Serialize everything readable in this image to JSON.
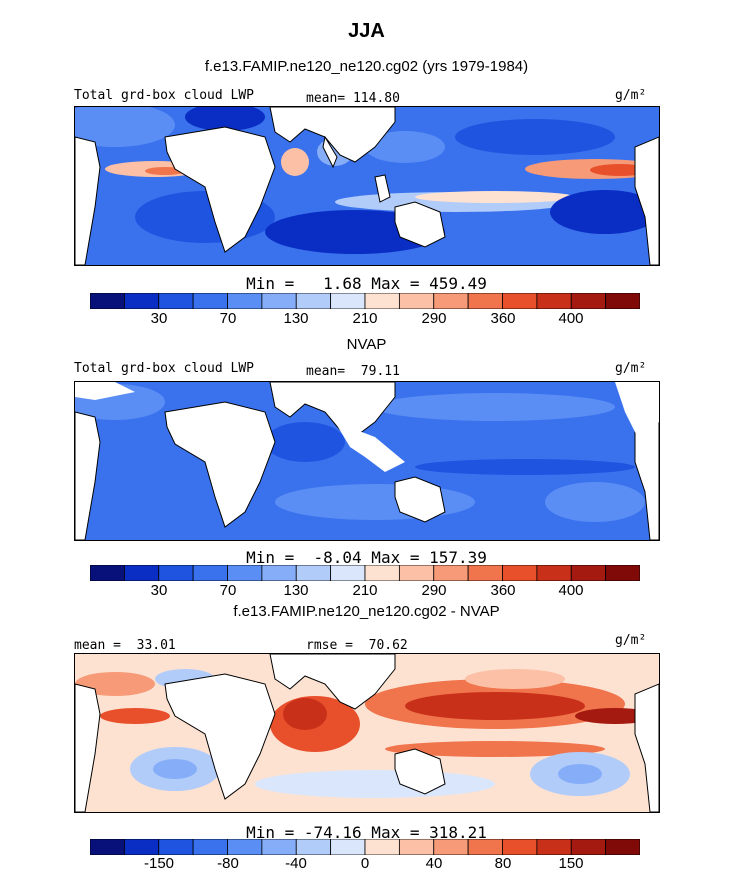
{
  "title": "JJA",
  "panels": [
    {
      "id": "model",
      "subtitle": "f.e13.FAMIP.ne120_ne120.cg02 (yrs 1979-1984)",
      "label_left": "Total grd-box cloud LWP",
      "label_mid": "mean= 114.80",
      "units": "g/m²",
      "minmax": "Min =   1.68 Max = 459.49",
      "ticks": [
        "30",
        "70",
        "130",
        "210",
        "290",
        "360",
        "400"
      ]
    },
    {
      "id": "obs",
      "subtitle": "NVAP",
      "label_left": "Total grd-box cloud LWP",
      "label_mid": "mean=  79.11",
      "units": "g/m²",
      "minmax": "Min =  -8.04 Max = 157.39",
      "ticks": [
        "30",
        "70",
        "130",
        "210",
        "290",
        "360",
        "400"
      ]
    },
    {
      "id": "diff",
      "subtitle": "f.e13.FAMIP.ne120_ne120.cg02 - NVAP",
      "label_left": "mean =  33.01",
      "label_mid": "rmse =  70.62",
      "units": "g/m²",
      "minmax": "Min = -74.16 Max = 318.21",
      "ticks": [
        "-150",
        "-80",
        "-40",
        "0",
        "40",
        "80",
        "150"
      ]
    }
  ],
  "colorbar_colors": [
    "#08107a",
    "#0a2ec4",
    "#1f54e0",
    "#3a72ee",
    "#5a8ef5",
    "#86aef8",
    "#b2ccfa",
    "#d9e6fc",
    "#fde2d2",
    "#fbc0a5",
    "#f69a77",
    "#f0744c",
    "#e8502c",
    "#c9301a",
    "#a51a10",
    "#7f0a08"
  ]
}
